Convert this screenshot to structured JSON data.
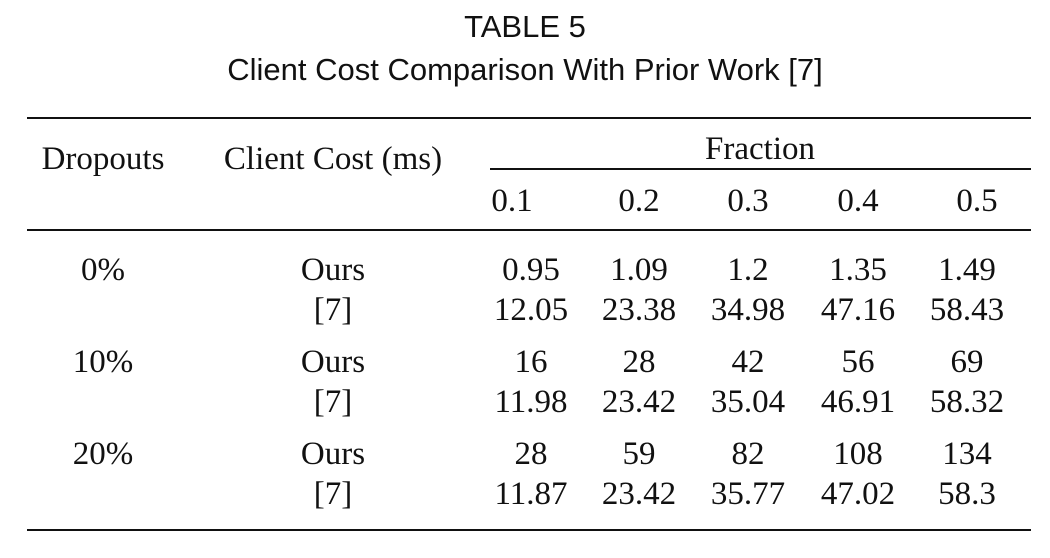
{
  "title": "TABLE 5",
  "subtitle": "Client Cost Comparison With Prior Work [7]",
  "headers": {
    "dropouts": "Dropouts",
    "client_cost": "Client Cost (ms)",
    "fraction": "Fraction",
    "fractions": [
      "0.1",
      "0.2",
      "0.3",
      "0.4",
      "0.5"
    ]
  },
  "rows": [
    {
      "dropout": "0%",
      "method": "Ours",
      "values": [
        "0.95",
        "1.09",
        "1.2",
        "1.35",
        "1.49"
      ]
    },
    {
      "dropout": "",
      "method": "[7]",
      "values": [
        "12.05",
        "23.38",
        "34.98",
        "47.16",
        "58.43"
      ]
    },
    {
      "dropout": "10%",
      "method": "Ours",
      "values": [
        "16",
        "28",
        "42",
        "56",
        "69"
      ]
    },
    {
      "dropout": "",
      "method": "[7]",
      "values": [
        "11.98",
        "23.42",
        "35.04",
        "46.91",
        "58.32"
      ]
    },
    {
      "dropout": "20%",
      "method": "Ours",
      "values": [
        "28",
        "59",
        "82",
        "108",
        "134"
      ]
    },
    {
      "dropout": "",
      "method": "[7]",
      "values": [
        "11.87",
        "23.42",
        "35.77",
        "47.02",
        "58.3"
      ]
    }
  ]
}
